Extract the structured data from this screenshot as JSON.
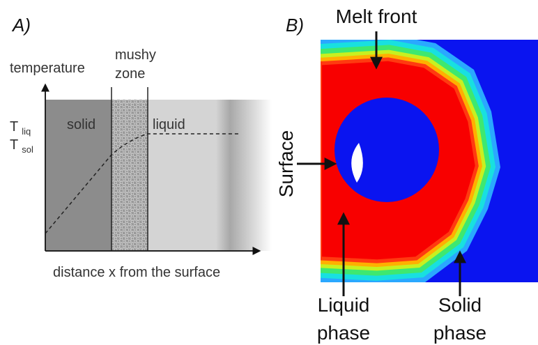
{
  "panel_a": {
    "label": "A)",
    "y_axis_label": "temperature",
    "mushy_zone": [
      "mushy",
      "zone"
    ],
    "solid": "solid",
    "liquid": "liquid",
    "t_liq": {
      "symbol": "T",
      "subscript": "liq"
    },
    "t_sol": {
      "symbol": "T",
      "subscript": "sol"
    },
    "x_axis_label": "distance x from the surface"
  },
  "panel_b": {
    "label": "B)",
    "melt_front": "Melt front",
    "surface": "Surface",
    "liquid_phase": [
      "Liquid",
      "phase"
    ],
    "solid_phase": [
      "Solid",
      "phase"
    ]
  }
}
